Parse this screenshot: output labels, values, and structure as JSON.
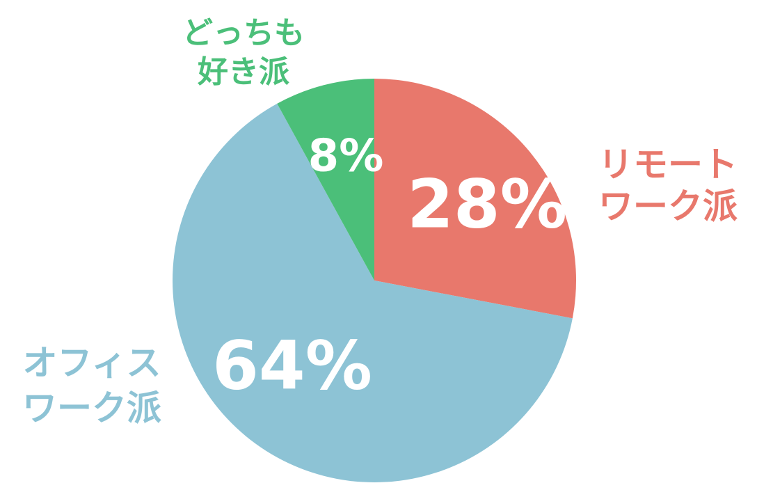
{
  "chart_data": {
    "type": "pie",
    "categories": [
      [
        "リモート",
        "ワーク派"
      ],
      [
        "オフィス",
        "ワーク派"
      ],
      [
        "どっちも",
        "好き派"
      ]
    ],
    "values": [
      28,
      64,
      8
    ],
    "value_labels": [
      "28%",
      "64%",
      "8%"
    ],
    "colors": [
      "#e8786c",
      "#8dc3d5",
      "#4bbf79"
    ]
  }
}
